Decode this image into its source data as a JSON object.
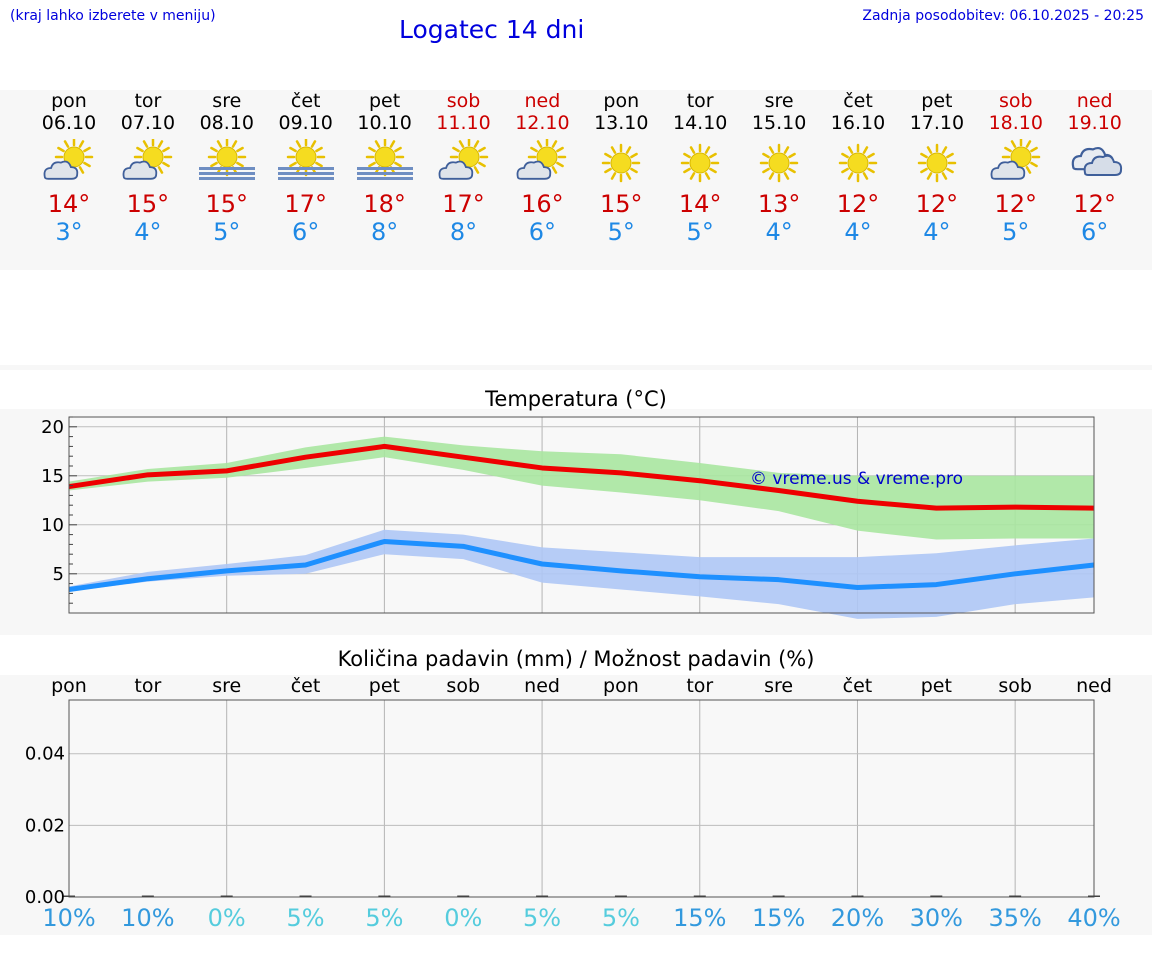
{
  "header": {
    "note": "(kraj lahko izberete v meniju)",
    "title": "Logatec 14 dni",
    "update": "Zadnja posodobitev: 06.10.2025 - 20:25"
  },
  "colors": {
    "max": "#ee0000",
    "min": "#1e90ff",
    "max_band": "#a8e6a0",
    "min_band": "#aec6f5",
    "weekend": "#cc0000",
    "link": "#0000dd"
  },
  "days": [
    {
      "name": "pon",
      "date": "06.10",
      "weekend": false,
      "icon": "sun-cloud-icon",
      "tmax": "14°",
      "tmin": "3°"
    },
    {
      "name": "tor",
      "date": "07.10",
      "weekend": false,
      "icon": "sun-cloud-icon",
      "tmax": "15°",
      "tmin": "4°"
    },
    {
      "name": "sre",
      "date": "08.10",
      "weekend": false,
      "icon": "sun-fog-icon",
      "tmax": "15°",
      "tmin": "5°"
    },
    {
      "name": "čet",
      "date": "09.10",
      "weekend": false,
      "icon": "sun-fog-icon",
      "tmax": "17°",
      "tmin": "6°"
    },
    {
      "name": "pet",
      "date": "10.10",
      "weekend": false,
      "icon": "sun-fog-icon",
      "tmax": "18°",
      "tmin": "8°"
    },
    {
      "name": "sob",
      "date": "11.10",
      "weekend": true,
      "icon": "sun-cloud-icon",
      "tmax": "17°",
      "tmin": "8°"
    },
    {
      "name": "ned",
      "date": "12.10",
      "weekend": true,
      "icon": "sun-cloud-icon",
      "tmax": "16°",
      "tmin": "6°"
    },
    {
      "name": "pon",
      "date": "13.10",
      "weekend": false,
      "icon": "sun-icon",
      "tmax": "15°",
      "tmin": "5°"
    },
    {
      "name": "tor",
      "date": "14.10",
      "weekend": false,
      "icon": "sun-icon",
      "tmax": "14°",
      "tmin": "5°"
    },
    {
      "name": "sre",
      "date": "15.10",
      "weekend": false,
      "icon": "sun-icon",
      "tmax": "13°",
      "tmin": "4°"
    },
    {
      "name": "čet",
      "date": "16.10",
      "weekend": false,
      "icon": "sun-icon",
      "tmax": "12°",
      "tmin": "4°"
    },
    {
      "name": "pet",
      "date": "17.10",
      "weekend": false,
      "icon": "sun-icon",
      "tmax": "12°",
      "tmin": "4°"
    },
    {
      "name": "sob",
      "date": "18.10",
      "weekend": true,
      "icon": "sun-cloud-icon",
      "tmax": "12°",
      "tmin": "5°"
    },
    {
      "name": "ned",
      "date": "19.10",
      "weekend": true,
      "icon": "clouds-icon",
      "tmax": "12°",
      "tmin": "6°"
    }
  ],
  "chart_data": [
    {
      "type": "area",
      "title": "Temperatura (°C)",
      "ylim": [
        1,
        21
      ],
      "yticks": [
        5,
        10,
        15,
        20
      ],
      "ytick_labels": [
        "5",
        "10",
        "15",
        "20"
      ],
      "grid": true,
      "watermark": "© vreme.us & vreme.pro",
      "x": [
        0,
        1,
        2,
        3,
        4,
        5,
        6,
        7,
        8,
        9,
        10,
        11,
        12,
        13
      ],
      "series": [
        {
          "name": "max",
          "values": [
            13.9,
            15.1,
            15.5,
            16.9,
            18.0,
            16.9,
            15.8,
            15.3,
            14.5,
            13.5,
            12.4,
            11.7,
            11.8,
            11.7
          ],
          "band_low": [
            13.5,
            14.4,
            14.8,
            15.8,
            16.9,
            15.6,
            14.0,
            13.3,
            12.5,
            11.4,
            9.4,
            8.5,
            8.6,
            8.6
          ],
          "band_high": [
            14.4,
            15.7,
            16.3,
            17.9,
            19.0,
            18.1,
            17.5,
            17.2,
            16.3,
            15.3,
            15.0,
            15.0,
            15.0,
            15.0
          ]
        },
        {
          "name": "min",
          "values": [
            3.4,
            4.5,
            5.3,
            5.9,
            8.3,
            7.8,
            6.0,
            5.3,
            4.7,
            4.4,
            3.6,
            3.9,
            5.0,
            5.9
          ],
          "band_low": [
            3.2,
            4.2,
            4.8,
            5.0,
            7.0,
            6.5,
            4.1,
            3.4,
            2.7,
            1.9,
            0.4,
            0.6,
            1.9,
            2.6
          ],
          "band_high": [
            3.7,
            5.2,
            6.0,
            6.9,
            9.5,
            9.0,
            7.7,
            7.2,
            6.7,
            6.7,
            6.7,
            7.1,
            7.9,
            8.6
          ]
        }
      ]
    },
    {
      "type": "bar",
      "title": "Količina padavin (mm) / Možnost padavin (%)",
      "categories": [
        "pon",
        "tor",
        "sre",
        "čet",
        "pet",
        "sob",
        "ned",
        "pon",
        "tor",
        "sre",
        "čet",
        "pet",
        "sob",
        "ned"
      ],
      "values": [
        0,
        0,
        0,
        0,
        0,
        0,
        0,
        0,
        0,
        0,
        0,
        0,
        0,
        0
      ],
      "ylim": [
        0,
        0.055
      ],
      "yticks": [
        0.0,
        0.02,
        0.04
      ],
      "ytick_labels": [
        "0.00",
        "0.02",
        "0.04"
      ],
      "grid": true,
      "probability": [
        "10%",
        "10%",
        "0%",
        "5%",
        "5%",
        "0%",
        "5%",
        "5%",
        "15%",
        "15%",
        "20%",
        "30%",
        "35%",
        "40%"
      ],
      "probability_values": [
        10,
        10,
        0,
        5,
        5,
        0,
        5,
        5,
        15,
        15,
        20,
        30,
        35,
        40
      ],
      "colors": {
        "dark": "#3399dd",
        "light": "#55ccdd"
      }
    }
  ]
}
